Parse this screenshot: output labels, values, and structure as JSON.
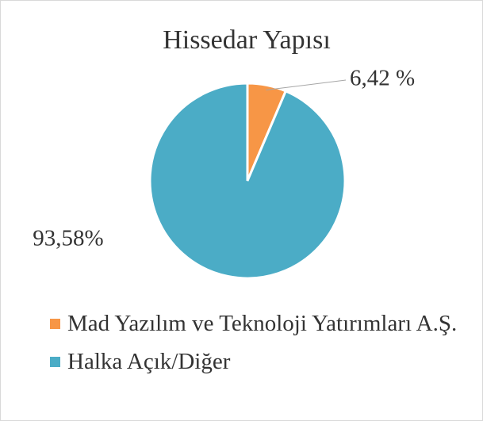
{
  "chart_data": {
    "type": "pie",
    "title": "Hissedar Yapısı",
    "categories": [
      "Mad Yazılım ve Teknoloji Yatırımları A.Ş.",
      "Halka Açık/Diğer"
    ],
    "values": [
      6.42,
      93.58
    ],
    "value_labels": [
      "6,42 %",
      "93,58%"
    ],
    "colors": [
      "#f79646",
      "#4bacc6"
    ],
    "legend": "bottom"
  }
}
